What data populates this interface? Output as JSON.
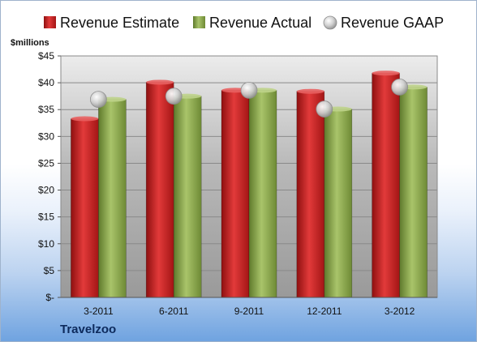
{
  "chart_data": {
    "type": "bar",
    "unit_label": "$millions",
    "company": "Travelzoo",
    "categories": [
      "3-2011",
      "6-2011",
      "9-2011",
      "12-2011",
      "3-2012"
    ],
    "y_ticks": [
      "$-",
      "$5",
      "$10",
      "$15",
      "$20",
      "$25",
      "$30",
      "$35",
      "$40",
      "$45"
    ],
    "ylim": [
      0,
      45
    ],
    "series": [
      {
        "name": "Revenue Estimate",
        "mark": "bar",
        "color": "#cc1f1f",
        "values": [
          33.3,
          40.1,
          38.6,
          38.4,
          41.8
        ]
      },
      {
        "name": "Revenue Actual",
        "mark": "bar",
        "color": "#8fad4e",
        "values": [
          36.9,
          37.5,
          38.6,
          35.1,
          39.2
        ]
      },
      {
        "name": "Revenue GAAP",
        "mark": "point",
        "color": "#c8c8c8",
        "values": [
          36.9,
          37.5,
          38.6,
          35.1,
          39.2
        ]
      }
    ],
    "legend_position": "top",
    "grid": true
  }
}
